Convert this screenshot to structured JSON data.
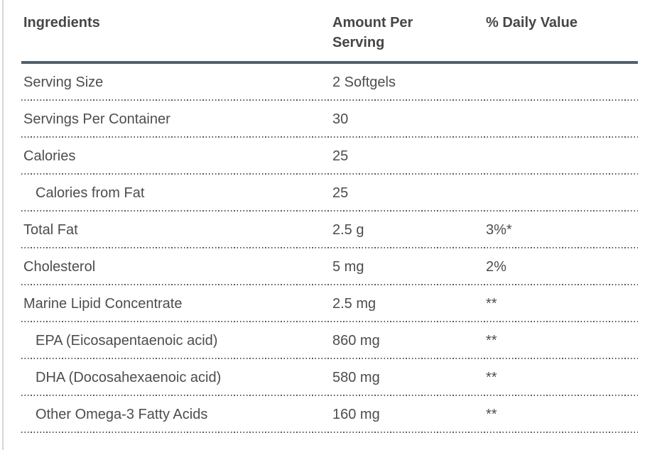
{
  "table": {
    "columns": [
      {
        "label": "Ingredients"
      },
      {
        "label": "Amount Per Serving"
      },
      {
        "label": "% Daily Value"
      }
    ],
    "rows": [
      {
        "ingredient": "Serving Size",
        "amount": "2 Softgels",
        "daily_value": "",
        "indent": false
      },
      {
        "ingredient": "Servings Per Container",
        "amount": "30",
        "daily_value": "",
        "indent": false
      },
      {
        "ingredient": "Calories",
        "amount": "25",
        "daily_value": "",
        "indent": false
      },
      {
        "ingredient": "Calories from Fat",
        "amount": "25",
        "daily_value": "",
        "indent": true
      },
      {
        "ingredient": "Total Fat",
        "amount": "2.5 g",
        "daily_value": "3%*",
        "indent": false
      },
      {
        "ingredient": "Cholesterol",
        "amount": "5 mg",
        "daily_value": "2%",
        "indent": false
      },
      {
        "ingredient": "Marine Lipid Concentrate",
        "amount": "2.5 mg",
        "daily_value": "**",
        "indent": false
      },
      {
        "ingredient": "EPA (Eicosapentaenoic acid)",
        "amount": "860 mg",
        "daily_value": "**",
        "indent": true
      },
      {
        "ingredient": "DHA (Docosahexaenoic acid)",
        "amount": "580 mg",
        "daily_value": "**",
        "indent": true
      },
      {
        "ingredient": "Other Omega-3 Fatty Acids",
        "amount": "160 mg",
        "daily_value": "**",
        "indent": true
      }
    ],
    "colors": {
      "text": "#4d4d4d",
      "header_text": "#464646",
      "solid_border": "#52616c",
      "dotted_border": "#4f5b66",
      "page_edge": "#d5d5d5",
      "bg": "#ffffff"
    }
  }
}
